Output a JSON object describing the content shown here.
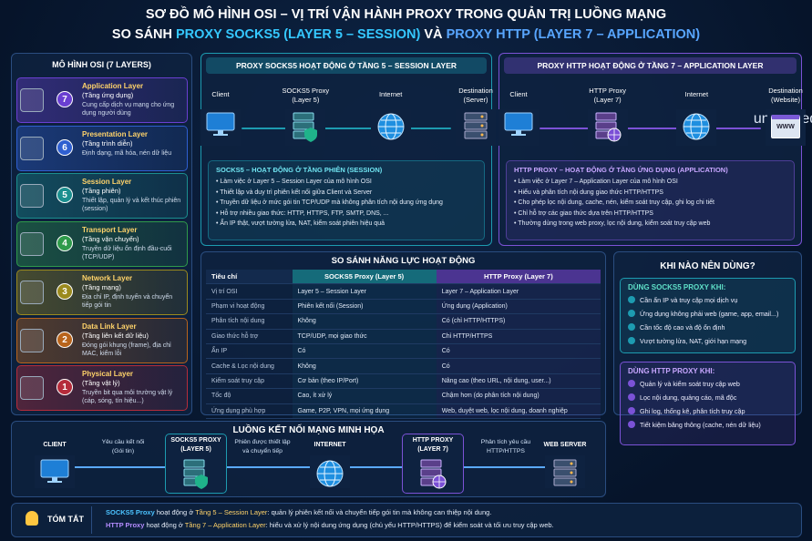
{
  "header": {
    "title": "SƠ ĐỒ MÔ HÌNH OSI – VỊ TRÍ VẬN HÀNH PROXY TRONG QUẢN TRỊ LUỒNG MẠNG",
    "subtitle": [
      "SO SÁNH ",
      "PROXY SOCKS5 (LAYER 5 – SESSION)",
      " VÀ ",
      "PROXY HTTP (LAYER 7 – APPLICATION)"
    ]
  },
  "osi": {
    "title": "MÔ HÌNH OSI (7 LAYERS)",
    "layers": [
      {
        "number": 7,
        "name": "Application Layer",
        "name_vi": "(Tầng ứng dụng)",
        "description": "Cung cấp dịch vụ mạng cho ứng dụng người dùng"
      },
      {
        "number": 6,
        "name": "Presentation Layer",
        "name_vi": "(Tầng trình diễn)",
        "description": "Định dạng, mã hóa, nén dữ liệu"
      },
      {
        "number": 5,
        "name": "Session Layer",
        "name_vi": "(Tầng phiên)",
        "description": "Thiết lập, quản lý và kết thúc phiên (session)"
      },
      {
        "number": 4,
        "name": "Transport Layer",
        "name_vi": "(Tầng vận chuyển)",
        "description": "Truyền dữ liệu ổn định đầu-cuối (TCP/UDP)"
      },
      {
        "number": 3,
        "name": "Network Layer",
        "name_vi": "(Tầng mạng)",
        "description": "Địa chỉ IP, định tuyến và chuyển tiếp gói tin"
      },
      {
        "number": 2,
        "name": "Data Link Layer",
        "name_vi": "(Tầng liên kết dữ liệu)",
        "description": "Đóng gói khung (frame), địa chỉ MAC, kiểm lỗi"
      },
      {
        "number": 1,
        "name": "Physical Layer",
        "name_vi": "(Tầng vật lý)",
        "description": "Truyền bit qua môi trường vật lý (cáp, sóng, tín hiệu...)"
      }
    ]
  },
  "socks5_panel": {
    "title": "PROXY SOCKS5 HOẠT ĐỘNG Ở TẦNG 5 – SESSION LAYER",
    "nodes": [
      [
        "Client"
      ],
      [
        "SOCKS5 Proxy",
        "(Layer 5)"
      ],
      [
        "Internet"
      ],
      [
        "Destination",
        "(Server)"
      ]
    ],
    "box_title": "SOCKS5 – HOẠT ĐỘNG Ở TẦNG PHIÊN (SESSION)",
    "bullets": [
      "Làm việc ở Layer 5 – Session Layer của mô hình OSI",
      "Thiết lập và duy trì phiên kết nối giữa Client và Server",
      "Truyền dữ liệu ở mức gói tin TCP/UDP mà không phân tích nội dung ứng dụng",
      "Hỗ trợ nhiều giao thức: HTTP, HTTPS, FTP, SMTP, DNS, ...",
      "Ẩn IP thật, vượt tường lửa, NAT, kiểm soát phiên hiệu quả"
    ]
  },
  "http_panel": {
    "title": "PROXY HTTP HOẠT ĐỘNG Ở TẦNG 7 – APPLICATION LAYER",
    "nodes": [
      [
        "Client"
      ],
      [
        "HTTP Proxy",
        "(Layer 7)"
      ],
      [
        "Internet"
      ],
      [
        "Destination",
        "(Website)"
      ]
    ],
    "www": "WWW",
    "box_title": "HTTP PROXY – HOẠT ĐỘNG Ở TẦNG ỨNG DỤNG (APPLICATION)",
    "bullets": [
      "Làm việc ở Layer 7 – Application Layer của mô hình OSI",
      "Hiểu và phân tích nội dung giao thức HTTP/HTTPS",
      "Cho phép lọc nội dung, cache, nén, kiểm soát truy cập, ghi log chi tiết",
      "Chỉ hỗ trợ các giao thức dựa trên HTTP/HTTPS",
      "Thường dùng trong web proxy, lọc nội dung, kiểm soát truy cập web"
    ]
  },
  "comparison": {
    "title": "SO SÁNH NĂNG LỰC HOẠT ĐỘNG",
    "columns": [
      "Tiêu chí",
      "SOCKS5 Proxy (Layer 5)",
      "HTTP Proxy (Layer 7)"
    ],
    "rows": [
      [
        "Vị trí OSI",
        "Layer 5 – Session Layer",
        "Layer 7 – Application Layer"
      ],
      [
        "Phạm vi hoạt động",
        "Phiên kết nối (Session)",
        "Ứng dụng (Application)"
      ],
      [
        "Phân tích nội dung",
        "Không",
        "Có (chỉ HTTP/HTTPS)"
      ],
      [
        "Giao thức hỗ trợ",
        "TCP/UDP, mọi giao thức",
        "Chỉ HTTP/HTTPS"
      ],
      [
        "Ẩn IP",
        "Có",
        "Có"
      ],
      [
        "Cache & Lọc nội dung",
        "Không",
        "Có"
      ],
      [
        "Kiểm soát truy cập",
        "Cơ bản (theo IP/Port)",
        "Nâng cao (theo URL, nội dung, user...)"
      ],
      [
        "Tốc độ",
        "Cao, ít xử lý",
        "Chậm hơn (do phân tích nội dung)"
      ],
      [
        "Ứng dụng phù hợp",
        "Game, P2P, VPN, mọi ứng dụng",
        "Web, duyệt web, lọc nội dung, doanh nghiệp"
      ]
    ]
  },
  "usage": {
    "title": "KHI NÀO NÊN DÙNG?",
    "socks5": {
      "title": "DÙNG SOCKS5 PROXY KHI:",
      "items": [
        "Cần ẩn IP và truy cập mọi dịch vụ",
        "Ứng dụng không phải web (game, app, email...)",
        "Cần tốc độ cao và độ ổn định",
        "Vượt tường lửa, NAT, giới hạn mạng"
      ]
    },
    "http": {
      "title": "DÙNG HTTP PROXY KHI:",
      "items": [
        "Quản lý và kiểm soát truy cập web",
        "Lọc nội dung, quảng cáo, mã độc",
        "Ghi log, thống kê, phân tích truy cập",
        "Tiết kiệm băng thông (cache, nén dữ liệu)"
      ]
    }
  },
  "flow": {
    "title": "LUỒNG KẾT NỐI MẠNG MINH HỌA",
    "nodes": [
      [
        "CLIENT"
      ],
      [
        "SOCKS5 PROXY",
        "(LAYER 5)"
      ],
      [
        "INTERNET"
      ],
      [
        "HTTP PROXY",
        "(LAYER 7)"
      ],
      [
        "WEB SERVER"
      ]
    ],
    "arrows": [
      [
        "Yêu cầu kết nối",
        "(Gói tin)"
      ],
      [
        "Phiên được thiết lập",
        "và chuyển tiếp"
      ],
      [
        "Phân tích yêu cầu",
        "HTTP/HTTPS"
      ]
    ]
  },
  "summary": {
    "label": "TÓM TẮT",
    "lines": [
      [
        "SOCKS5 Proxy",
        " hoạt động ở ",
        "Tầng 5 – Session Layer",
        ": quản lý phiên kết nối và chuyển tiếp gói tin mà không can thiệp nội dung."
      ],
      [
        "HTTP Proxy",
        " hoạt động ở ",
        "Tầng 7 – Application Layer",
        ": hiểu và xử lý nội dung ứng dụng (chủ yếu HTTP/HTTPS) để kiểm soát và tối ưu truy cập web."
      ]
    ]
  }
}
